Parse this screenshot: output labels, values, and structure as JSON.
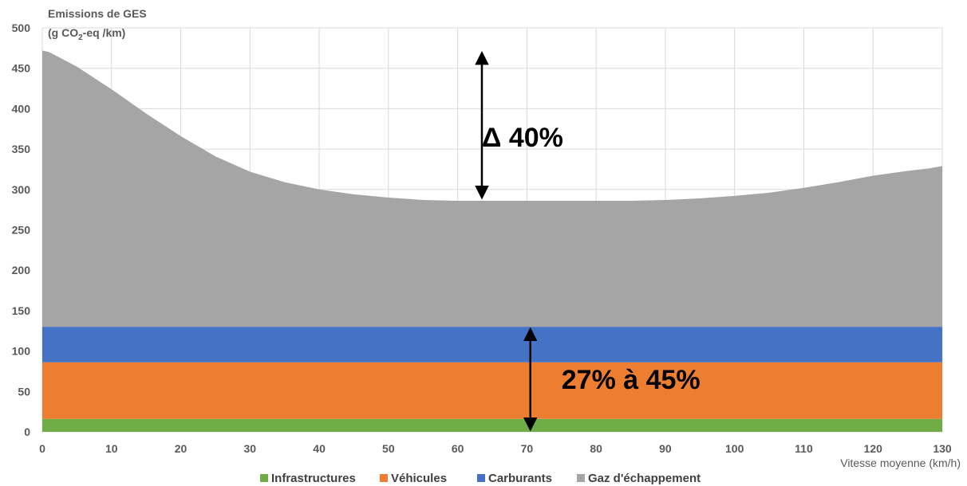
{
  "chart_data": {
    "type": "area",
    "ylabel_line1": "Emissions de GES",
    "ylabel_line2_prefix": "(g CO",
    "ylabel_line2_sub": "2",
    "ylabel_line2_suffix": "-eq /km)",
    "xlabel": "Vitesse moyenne (km/h)",
    "xlim": [
      0,
      130
    ],
    "ylim": [
      0,
      500
    ],
    "xticks": [
      0,
      10,
      20,
      30,
      40,
      50,
      60,
      70,
      80,
      90,
      100,
      110,
      120,
      130
    ],
    "yticks": [
      0,
      50,
      100,
      150,
      200,
      250,
      300,
      350,
      400,
      450,
      500
    ],
    "grid": true,
    "legend_position": "bottom",
    "stacked": true,
    "x": [
      0,
      1,
      5,
      10,
      15,
      20,
      25,
      30,
      35,
      40,
      45,
      50,
      55,
      60,
      65,
      70,
      75,
      80,
      85,
      90,
      95,
      100,
      105,
      110,
      115,
      120,
      125,
      128,
      130
    ],
    "series": [
      {
        "name": "Infrastructures",
        "color": "#70ad47",
        "values": [
          16,
          16,
          16,
          16,
          16,
          16,
          16,
          16,
          16,
          16,
          16,
          16,
          16,
          16,
          16,
          16,
          16,
          16,
          16,
          16,
          16,
          16,
          16,
          16,
          16,
          16,
          16,
          16,
          16
        ]
      },
      {
        "name": "Véhicules",
        "color": "#ed7d31",
        "values": [
          70,
          70,
          70,
          70,
          70,
          70,
          70,
          70,
          70,
          70,
          70,
          70,
          70,
          70,
          70,
          70,
          70,
          70,
          70,
          70,
          70,
          70,
          70,
          70,
          70,
          70,
          70,
          70,
          70
        ]
      },
      {
        "name": "Carburants",
        "color": "#4472c4",
        "values": [
          44,
          44,
          44,
          44,
          44,
          44,
          44,
          44,
          44,
          44,
          44,
          44,
          44,
          44,
          44,
          44,
          44,
          44,
          44,
          44,
          44,
          44,
          44,
          44,
          44,
          44,
          44,
          44,
          44
        ]
      },
      {
        "name": "Gaz d'échappement",
        "color": "#a5a5a5",
        "values": [
          342,
          340,
          322,
          294,
          264,
          236,
          211,
          192,
          179,
          170,
          164,
          160,
          157,
          156,
          156,
          156,
          156,
          156,
          156,
          157,
          159,
          162,
          166,
          172,
          179,
          187,
          193,
          196,
          199
        ]
      }
    ],
    "annotations": [
      {
        "text": "Δ 40%",
        "x": 63.5,
        "y": 365,
        "arrow_x": 63.5,
        "arrow_from": 287,
        "arrow_to": 472
      },
      {
        "text": "27% à 45%",
        "x": 75,
        "y": 65,
        "arrow_x": 70.5,
        "arrow_from": 0,
        "arrow_to": 130
      }
    ]
  }
}
